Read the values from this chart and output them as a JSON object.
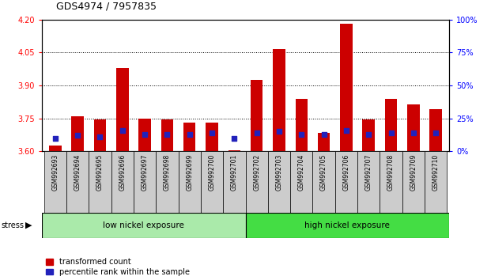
{
  "title": "GDS4974 / 7957835",
  "samples": [
    "GSM992693",
    "GSM992694",
    "GSM992695",
    "GSM992696",
    "GSM992697",
    "GSM992698",
    "GSM992699",
    "GSM992700",
    "GSM992701",
    "GSM992702",
    "GSM992703",
    "GSM992704",
    "GSM992705",
    "GSM992706",
    "GSM992707",
    "GSM992708",
    "GSM992709",
    "GSM992710"
  ],
  "red_values": [
    3.625,
    3.76,
    3.745,
    3.98,
    3.75,
    3.745,
    3.73,
    3.73,
    3.605,
    3.925,
    4.065,
    3.84,
    3.685,
    4.18,
    3.745,
    3.84,
    3.815,
    3.79
  ],
  "blue_percentiles": [
    10,
    12,
    11,
    16,
    13,
    13,
    13,
    14,
    10,
    14,
    15,
    13,
    13,
    16,
    13,
    14,
    14,
    14
  ],
  "ymin": 3.6,
  "ymax": 4.2,
  "y2min": 0,
  "y2max": 100,
  "yticks": [
    3.6,
    3.75,
    3.9,
    4.05,
    4.2
  ],
  "y2ticks": [
    0,
    25,
    50,
    75,
    100
  ],
  "y2ticklabels": [
    "0%",
    "25%",
    "50%",
    "75%",
    "100%"
  ],
  "bar_color": "#cc0000",
  "blue_color": "#2222bb",
  "low_nickel_count": 9,
  "low_nickel_label": "low nickel exposure",
  "high_nickel_label": "high nickel exposure",
  "low_nickel_bg": "#aaeaaa",
  "high_nickel_bg": "#44dd44",
  "stress_label": "stress",
  "legend_red": "transformed count",
  "legend_blue": "percentile rank within the sample",
  "bar_width": 0.55,
  "dotted_lines": [
    3.75,
    3.9,
    4.05
  ],
  "plot_bg": "#ffffff",
  "tick_bg": "#cccccc"
}
